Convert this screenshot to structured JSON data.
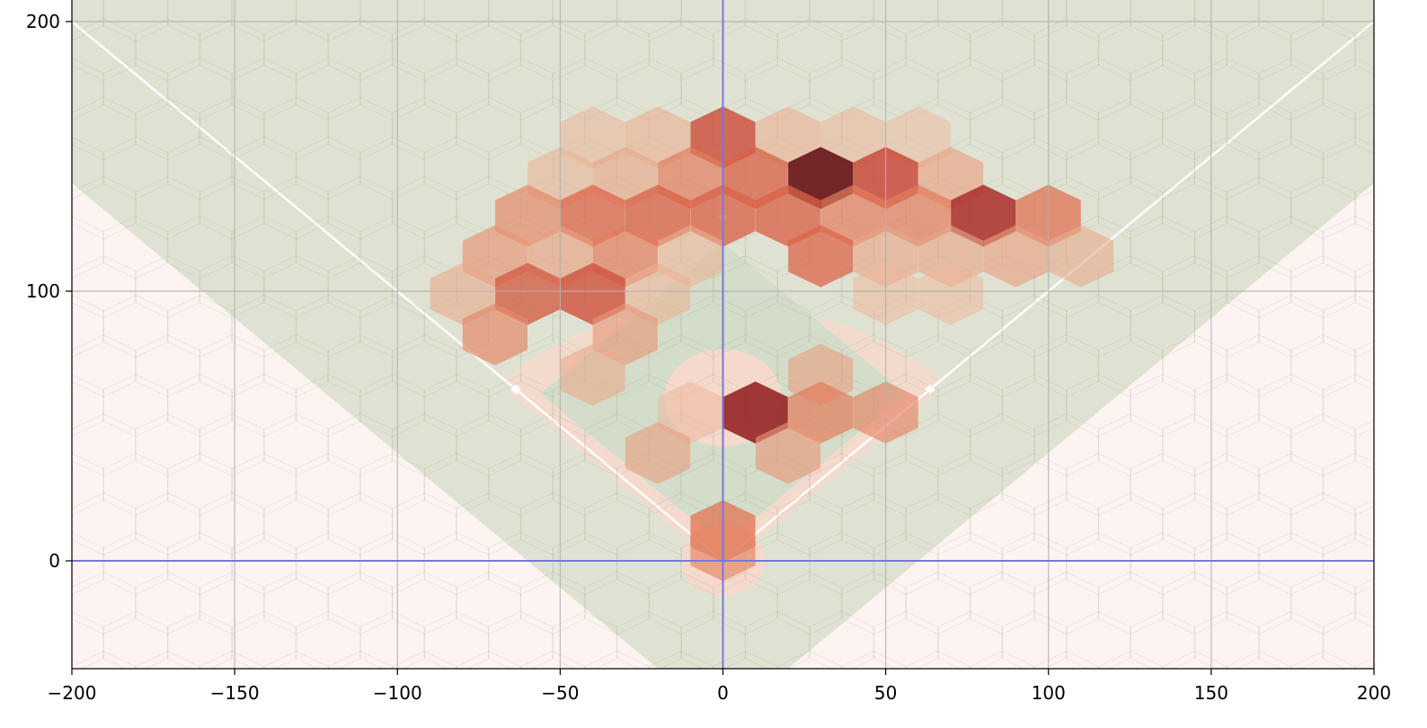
{
  "chart_data": {
    "type": "heatmap",
    "subtype": "hexbin over baseball field",
    "title": "",
    "xlabel": "",
    "ylabel": "",
    "xlim": [
      -200,
      200
    ],
    "ylim": [
      -40,
      208
    ],
    "x_ticks": [
      -200,
      -150,
      -100,
      -50,
      0,
      50,
      100,
      150,
      200
    ],
    "x_tick_labels": [
      "−200",
      "−150",
      "−100",
      "−50",
      "0",
      "50",
      "100",
      "150",
      "200"
    ],
    "y_ticks": [
      0,
      100,
      200
    ],
    "y_tick_labels": [
      "0",
      "100",
      "200"
    ],
    "grid": true,
    "reference_lines": [
      {
        "axis": "x",
        "value": 0
      },
      {
        "axis": "y",
        "value": 0
      }
    ],
    "colormap": "Reds",
    "hex_radius": 11.5,
    "colors": {
      "outfield_grass": "#dfe2d2",
      "infield_grass": "#d3ddc9",
      "foul_territory": "#fdf4f2",
      "dirt": "#f6d9cd",
      "foul_lines": "#ffffff",
      "zero_lines": "#7777dd",
      "grid": "#b0b0b0"
    },
    "hexbins": [
      {
        "x": 0,
        "y": 157,
        "level": 0.72
      },
      {
        "x": -20,
        "y": 157,
        "level": 0.28
      },
      {
        "x": -40,
        "y": 157,
        "level": 0.22
      },
      {
        "x": 20,
        "y": 157,
        "level": 0.28
      },
      {
        "x": 40,
        "y": 157,
        "level": 0.22
      },
      {
        "x": 60,
        "y": 157,
        "level": 0.18
      },
      {
        "x": -50,
        "y": 142,
        "level": 0.25
      },
      {
        "x": -30,
        "y": 142,
        "level": 0.32
      },
      {
        "x": -10,
        "y": 142,
        "level": 0.5
      },
      {
        "x": 10,
        "y": 142,
        "level": 0.62
      },
      {
        "x": 30,
        "y": 142,
        "level": 1.0
      },
      {
        "x": 50,
        "y": 142,
        "level": 0.75
      },
      {
        "x": 70,
        "y": 142,
        "level": 0.35
      },
      {
        "x": -60,
        "y": 128,
        "level": 0.45
      },
      {
        "x": -40,
        "y": 128,
        "level": 0.6
      },
      {
        "x": -20,
        "y": 128,
        "level": 0.62
      },
      {
        "x": 0,
        "y": 128,
        "level": 0.62
      },
      {
        "x": 20,
        "y": 128,
        "level": 0.62
      },
      {
        "x": 40,
        "y": 128,
        "level": 0.5
      },
      {
        "x": 60,
        "y": 128,
        "level": 0.5
      },
      {
        "x": 80,
        "y": 128,
        "level": 0.85
      },
      {
        "x": 100,
        "y": 128,
        "level": 0.55
      },
      {
        "x": -70,
        "y": 113,
        "level": 0.4
      },
      {
        "x": -50,
        "y": 113,
        "level": 0.35
      },
      {
        "x": -30,
        "y": 113,
        "level": 0.5
      },
      {
        "x": -10,
        "y": 113,
        "level": 0.25
      },
      {
        "x": 30,
        "y": 113,
        "level": 0.6
      },
      {
        "x": 50,
        "y": 113,
        "level": 0.32
      },
      {
        "x": 70,
        "y": 113,
        "level": 0.32
      },
      {
        "x": 90,
        "y": 113,
        "level": 0.35
      },
      {
        "x": 110,
        "y": 113,
        "level": 0.3
      },
      {
        "x": -80,
        "y": 99,
        "level": 0.3
      },
      {
        "x": -60,
        "y": 99,
        "level": 0.65
      },
      {
        "x": -40,
        "y": 99,
        "level": 0.7
      },
      {
        "x": -20,
        "y": 99,
        "level": 0.25
      },
      {
        "x": 50,
        "y": 99,
        "level": 0.2
      },
      {
        "x": 70,
        "y": 99,
        "level": 0.2
      },
      {
        "x": -70,
        "y": 84,
        "level": 0.45
      },
      {
        "x": -30,
        "y": 84,
        "level": 0.38
      },
      {
        "x": -40,
        "y": 69,
        "level": 0.3
      },
      {
        "x": 30,
        "y": 69,
        "level": 0.35
      },
      {
        "x": 10,
        "y": 55,
        "level": 0.92
      },
      {
        "x": 30,
        "y": 55,
        "level": 0.5
      },
      {
        "x": 50,
        "y": 55,
        "level": 0.45
      },
      {
        "x": -10,
        "y": 55,
        "level": 0.2
      },
      {
        "x": 20,
        "y": 40,
        "level": 0.38
      },
      {
        "x": -20,
        "y": 40,
        "level": 0.35
      },
      {
        "x": 0,
        "y": 11,
        "level": 0.55
      },
      {
        "x": 0,
        "y": 4,
        "level": 0.45
      }
    ]
  }
}
